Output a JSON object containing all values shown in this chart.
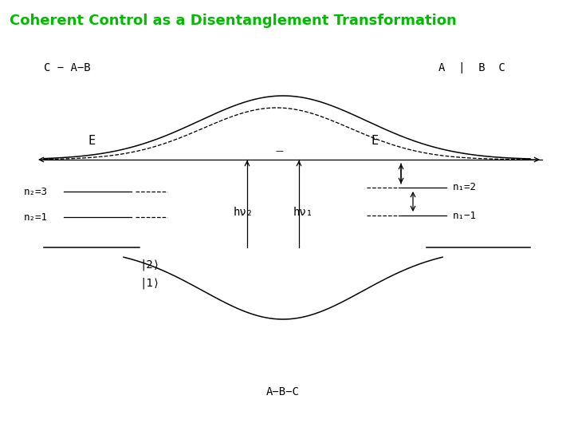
{
  "title": "Coherent Control as a Disentanglement Transformation",
  "title_color": "#00bb00",
  "title_fontsize": 13,
  "bg_color": "#ffffff",
  "label_top_left": "C − A−B",
  "label_top_right": "A  ∣  B  C",
  "label_bottom": "A−B−C",
  "label_E_left": "E",
  "label_E_right": "E",
  "label_hnu2": "hν₂",
  "label_hnu1": "hν₁",
  "label_n2_3": "n₂=3",
  "label_n2_1": "n₂=1",
  "label_n1_2": "n₁=2",
  "label_n1_1": "n₁−1",
  "label_ket2": "|2⟩",
  "label_ket1": "|1⟩",
  "line_color": "#000000",
  "curve_linewidth": 1.1,
  "arrow_linewidth": 0.9
}
